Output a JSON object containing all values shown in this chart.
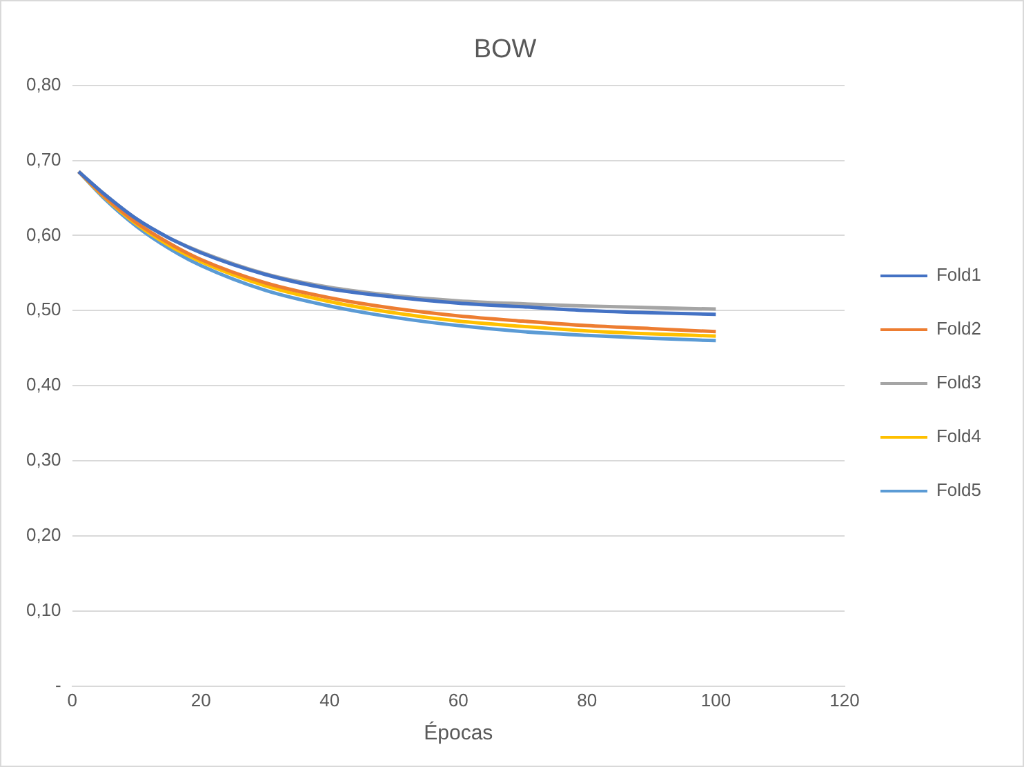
{
  "chart_data": {
    "type": "line",
    "title": "BOW",
    "xlabel": "Épocas",
    "x": [
      1,
      5,
      10,
      15,
      20,
      30,
      40,
      50,
      60,
      70,
      80,
      90,
      100
    ],
    "series": [
      {
        "name": "Fold1",
        "color": "#4472c4",
        "values": [
          0.685,
          0.655,
          0.622,
          0.597,
          0.577,
          0.548,
          0.529,
          0.518,
          0.51,
          0.505,
          0.5,
          0.497,
          0.495
        ]
      },
      {
        "name": "Fold2",
        "color": "#ed7d31",
        "values": [
          0.685,
          0.652,
          0.617,
          0.59,
          0.568,
          0.537,
          0.517,
          0.503,
          0.493,
          0.486,
          0.48,
          0.476,
          0.472
        ]
      },
      {
        "name": "Fold3",
        "color": "#a5a5a5",
        "values": [
          0.685,
          0.655,
          0.622,
          0.597,
          0.578,
          0.549,
          0.531,
          0.52,
          0.513,
          0.509,
          0.506,
          0.504,
          0.502
        ]
      },
      {
        "name": "Fold4",
        "color": "#ffc000",
        "values": [
          0.685,
          0.651,
          0.615,
          0.587,
          0.565,
          0.533,
          0.512,
          0.497,
          0.486,
          0.479,
          0.473,
          0.469,
          0.466
        ]
      },
      {
        "name": "Fold5",
        "color": "#5b9bd5",
        "values": [
          0.685,
          0.649,
          0.612,
          0.583,
          0.56,
          0.527,
          0.506,
          0.491,
          0.48,
          0.472,
          0.467,
          0.463,
          0.46
        ]
      }
    ],
    "xlim": [
      0,
      120
    ],
    "xticks": [
      0,
      20,
      40,
      60,
      80,
      100,
      120
    ],
    "ylim": [
      0,
      0.8
    ],
    "yticks": [
      {
        "value": 0,
        "label": "-"
      },
      {
        "value": 0.1,
        "label": "0,10"
      },
      {
        "value": 0.2,
        "label": "0,20"
      },
      {
        "value": 0.3,
        "label": "0,30"
      },
      {
        "value": 0.4,
        "label": "0,40"
      },
      {
        "value": 0.5,
        "label": "0,50"
      },
      {
        "value": 0.6,
        "label": "0,60"
      },
      {
        "value": 0.7,
        "label": "0,70"
      },
      {
        "value": 0.8,
        "label": "0,80"
      }
    ],
    "grid": "y",
    "legend": "right",
    "marker": "none",
    "line_style": "solid"
  }
}
